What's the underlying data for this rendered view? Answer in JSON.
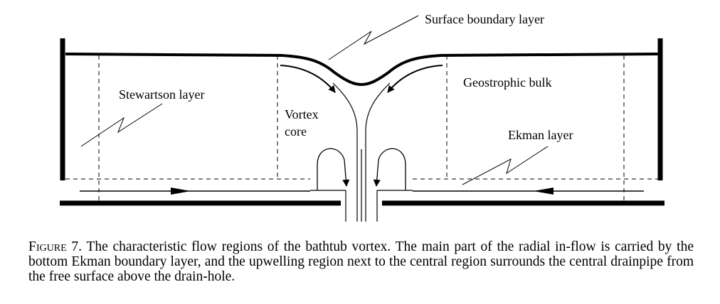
{
  "labels": {
    "surface": "Surface boundary layer",
    "stewartson": "Stewartson layer",
    "vortex_line1": "Vortex",
    "vortex_line2": "core",
    "geostrophic": "Geostrophic bulk",
    "ekman": "Ekman layer"
  },
  "caption": {
    "figure_label": "Figure",
    "figure_number": "7.",
    "text": "The characteristic flow regions of the bathtub vortex. The main part of the radial in-flow is carried by the bottom Ekman boundary layer, and the upwelling region next to the central region surrounds the central drainpipe from the free surface above the drain-hole."
  }
}
